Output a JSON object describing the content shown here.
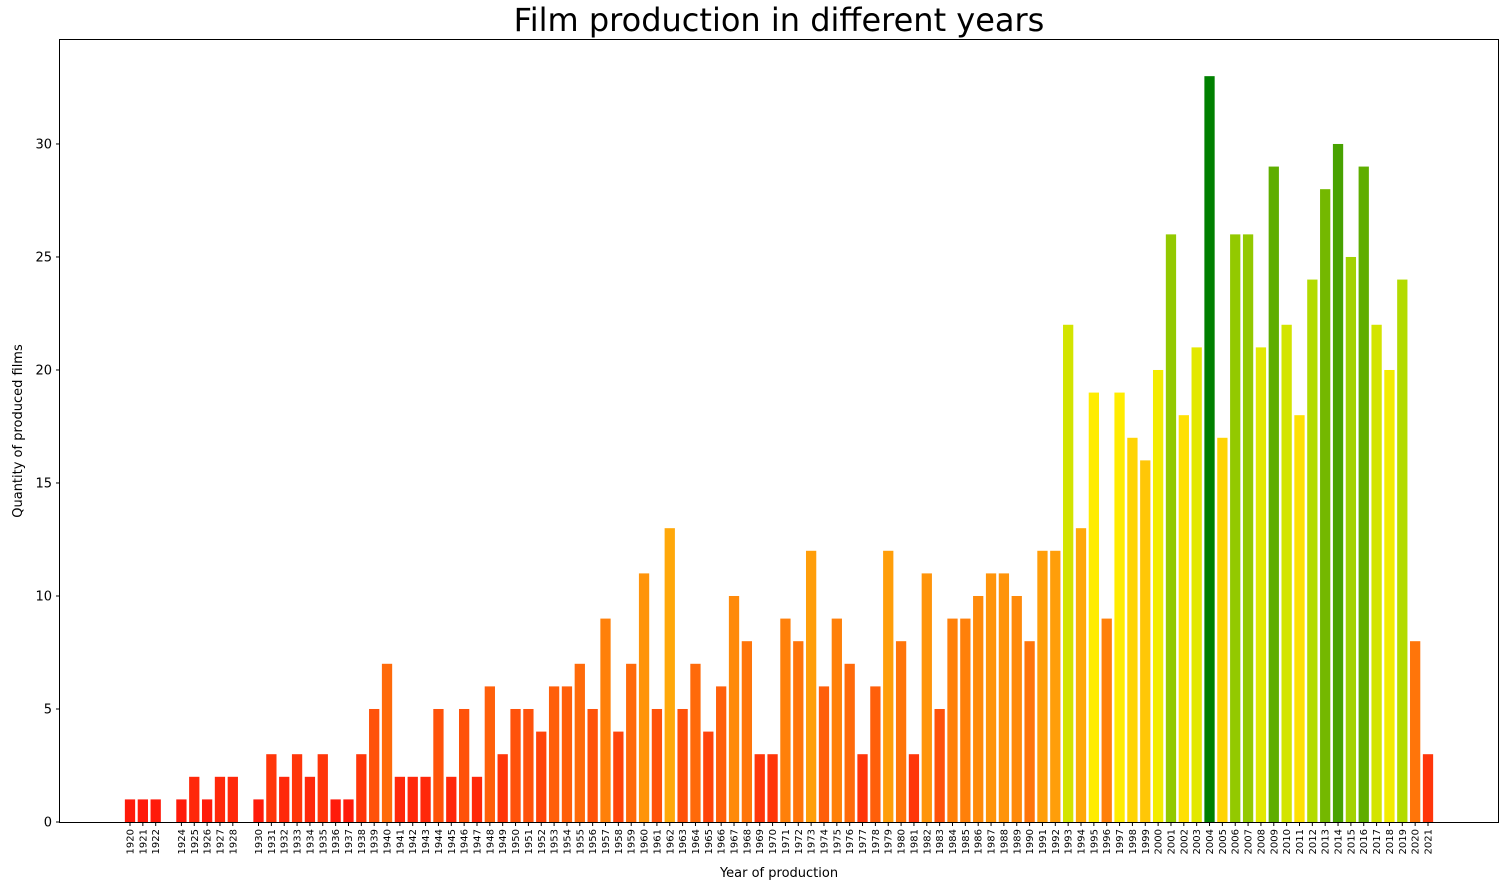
{
  "chart_data": {
    "type": "bar",
    "title": "Film production in different years",
    "xlabel": "Year of production",
    "ylabel": "Quantity of produced films",
    "ylim": [
      0,
      34.6
    ],
    "yticks": [
      0,
      5,
      10,
      15,
      20,
      25,
      30
    ],
    "grid": false,
    "legend": "none",
    "categories": [
      "1920",
      "1921",
      "1922",
      "1924",
      "1925",
      "1926",
      "1927",
      "1928",
      "1930",
      "1931",
      "1932",
      "1933",
      "1934",
      "1935",
      "1936",
      "1937",
      "1938",
      "1939",
      "1940",
      "1941",
      "1942",
      "1943",
      "1944",
      "1945",
      "1946",
      "1947",
      "1948",
      "1949",
      "1950",
      "1951",
      "1952",
      "1953",
      "1954",
      "1955",
      "1956",
      "1957",
      "1958",
      "1959",
      "1960",
      "1961",
      "1962",
      "1963",
      "1964",
      "1965",
      "1966",
      "1967",
      "1968",
      "1969",
      "1970",
      "1971",
      "1972",
      "1973",
      "1974",
      "1975",
      "1976",
      "1977",
      "1978",
      "1979",
      "1980",
      "1981",
      "1982",
      "1983",
      "1984",
      "1985",
      "1986",
      "1987",
      "1988",
      "1989",
      "1990",
      "1991",
      "1992",
      "1993",
      "1994",
      "1995",
      "1996",
      "1997",
      "1998",
      "1999",
      "2000",
      "2001",
      "2002",
      "2003",
      "2004",
      "2005",
      "2006",
      "2007",
      "2008",
      "2009",
      "2010",
      "2011",
      "2012",
      "2013",
      "2014",
      "2015",
      "2016",
      "2017",
      "2018",
      "2019",
      "2020",
      "2021"
    ],
    "values": [
      1,
      1,
      1,
      1,
      2,
      1,
      2,
      2,
      1,
      3,
      2,
      3,
      2,
      3,
      1,
      1,
      3,
      5,
      7,
      2,
      2,
      2,
      5,
      2,
      5,
      2,
      6,
      3,
      5,
      5,
      4,
      6,
      6,
      7,
      5,
      9,
      4,
      7,
      11,
      5,
      13,
      5,
      7,
      4,
      6,
      10,
      8,
      3,
      3,
      9,
      8,
      12,
      6,
      9,
      7,
      3,
      6,
      12,
      8,
      3,
      11,
      5,
      9,
      9,
      10,
      11,
      11,
      10,
      8,
      12,
      12,
      22,
      13,
      19,
      9,
      19,
      17,
      16,
      20,
      26,
      18,
      21,
      33,
      17,
      26,
      26,
      21,
      29,
      22,
      18,
      24,
      28,
      30,
      25,
      29,
      22,
      20,
      24,
      8,
      3
    ],
    "color_scale": {
      "description": "bar color varies with value: red (low) through orange and yellow to green (high)",
      "stops": [
        "#ff1a0a",
        "#ff5a0a",
        "#ff8c0a",
        "#ffb80a",
        "#ffef00",
        "#b5dc00",
        "#6db400",
        "#008000"
      ]
    }
  }
}
